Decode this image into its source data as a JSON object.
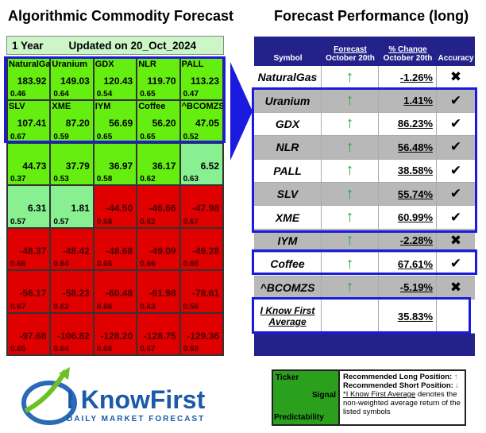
{
  "left": {
    "title": "Algorithmic Commodity Forecast",
    "horizon": "1 Year",
    "updated": "Updated on 20_Oct_2024",
    "cells": [
      {
        "t": "NaturalGas",
        "v": "183.92",
        "p": "0.46",
        "c": "g"
      },
      {
        "t": "Uranium",
        "v": "149.03",
        "p": "0.64",
        "c": "g"
      },
      {
        "t": "GDX",
        "v": "120.43",
        "p": "0.54",
        "c": "g"
      },
      {
        "t": "NLR",
        "v": "119.70",
        "p": "0.65",
        "c": "g"
      },
      {
        "t": "PALL",
        "v": "113.23",
        "p": "0.47",
        "c": "g"
      },
      {
        "t": "SLV",
        "v": "107.41",
        "p": "0.67",
        "c": "g"
      },
      {
        "t": "XME",
        "v": "87.20",
        "p": "0.59",
        "c": "g"
      },
      {
        "t": "IYM",
        "v": "56.69",
        "p": "0.65",
        "c": "g"
      },
      {
        "t": "Coffee",
        "v": "56.20",
        "p": "0.65",
        "c": "g"
      },
      {
        "t": "^BCOMZS",
        "v": "47.05",
        "p": "0.52",
        "c": "g"
      },
      {
        "t": "",
        "v": "44.73",
        "p": "0.37",
        "c": "g"
      },
      {
        "t": "",
        "v": "37.79",
        "p": "0.53",
        "c": "g"
      },
      {
        "t": "",
        "v": "36.97",
        "p": "0.58",
        "c": "g"
      },
      {
        "t": "",
        "v": "36.17",
        "p": "0.62",
        "c": "g"
      },
      {
        "t": "",
        "v": "6.52",
        "p": "0.63",
        "c": "lg"
      },
      {
        "t": "",
        "v": "6.31",
        "p": "0.57",
        "c": "lg"
      },
      {
        "t": "",
        "v": "1.81",
        "p": "0.57",
        "c": "lg"
      },
      {
        "t": "",
        "v": "-44.50",
        "p": "0.68",
        "c": "r"
      },
      {
        "t": "",
        "v": "-46.66",
        "p": "0.62",
        "c": "r"
      },
      {
        "t": "",
        "v": "-47.98",
        "p": "0.67",
        "c": "r"
      },
      {
        "t": "",
        "v": "-48.37",
        "p": "0.66",
        "c": "r"
      },
      {
        "t": "",
        "v": "-48.42",
        "p": "0.64",
        "c": "r"
      },
      {
        "t": "",
        "v": "-48.68",
        "p": "0.66",
        "c": "r"
      },
      {
        "t": "",
        "v": "-49.09",
        "p": "0.66",
        "c": "r"
      },
      {
        "t": "",
        "v": "-49.28",
        "p": "0.68",
        "c": "r"
      },
      {
        "t": "",
        "v": "-56.17",
        "p": "0.67",
        "c": "r"
      },
      {
        "t": "",
        "v": "-58.23",
        "p": "0.62",
        "c": "r"
      },
      {
        "t": "",
        "v": "-60.48",
        "p": "0.66",
        "c": "r"
      },
      {
        "t": "",
        "v": "-61.98",
        "p": "0.63",
        "c": "r"
      },
      {
        "t": "",
        "v": "-78.61",
        "p": "0.59",
        "c": "r"
      },
      {
        "t": "",
        "v": "-97.68",
        "p": "0.65",
        "c": "r"
      },
      {
        "t": "",
        "v": "-106.82",
        "p": "0.64",
        "c": "r"
      },
      {
        "t": "",
        "v": "-128.20",
        "p": "0.68",
        "c": "r"
      },
      {
        "t": "",
        "v": "-128.75",
        "p": "0.67",
        "c": "r"
      },
      {
        "t": "",
        "v": "-129.36",
        "p": "0.68",
        "c": "r"
      }
    ]
  },
  "right": {
    "title": "Forecast Performance (long)",
    "headers": {
      "symbol": "Symbol",
      "forecast_top": "Forecast",
      "forecast_bottom": "October 20th",
      "change_top": "% Change",
      "change_bottom": "October 20th",
      "accuracy": "Accuracy"
    },
    "rows": [
      {
        "symbol": "NaturalGas",
        "forecast": "↑",
        "change": "-1.26%",
        "accuracy": "✖",
        "gray": false
      },
      {
        "symbol": "Uranium",
        "forecast": "↑",
        "change": "1.41%",
        "accuracy": "✔",
        "gray": true
      },
      {
        "symbol": "GDX",
        "forecast": "↑",
        "change": "86.23%",
        "accuracy": "✔",
        "gray": false
      },
      {
        "symbol": "NLR",
        "forecast": "↑",
        "change": "56.48%",
        "accuracy": "✔",
        "gray": true
      },
      {
        "symbol": "PALL",
        "forecast": "↑",
        "change": "38.58%",
        "accuracy": "✔",
        "gray": false
      },
      {
        "symbol": "SLV",
        "forecast": "↑",
        "change": "55.74%",
        "accuracy": "✔",
        "gray": true
      },
      {
        "symbol": "XME",
        "forecast": "↑",
        "change": "60.99%",
        "accuracy": "✔",
        "gray": false
      },
      {
        "symbol": "IYM",
        "forecast": "↑",
        "change": "-2.28%",
        "accuracy": "✖",
        "gray": true
      },
      {
        "symbol": "Coffee",
        "forecast": "↑",
        "change": "67.61%",
        "accuracy": "✔",
        "gray": false
      },
      {
        "symbol": "^BCOMZS",
        "forecast": "↑",
        "change": "-5.19%",
        "accuracy": "✖",
        "gray": true
      }
    ],
    "average": {
      "label1": "I Know First",
      "label2": "Average",
      "value": "35.83%"
    }
  },
  "legend": {
    "ticker": "Ticker",
    "signal": "Signal",
    "predictability": "Predictability",
    "long": "Recommended Long Position:",
    "short": "Recommended Short Position:",
    "long_icon": "↑",
    "short_icon": "↓",
    "note_link": "*I Know First Average",
    "note": " denotes the non-weighted average return of the listed symbols"
  },
  "logo": {
    "name": "I KnowFirst",
    "tagline": "DAILY MARKET FORECAST"
  },
  "colors": {
    "green": "#66ee11",
    "light_green": "#88f090",
    "red": "#e00000",
    "navy": "#22228a",
    "blue_outline": "#1a1ae0"
  }
}
